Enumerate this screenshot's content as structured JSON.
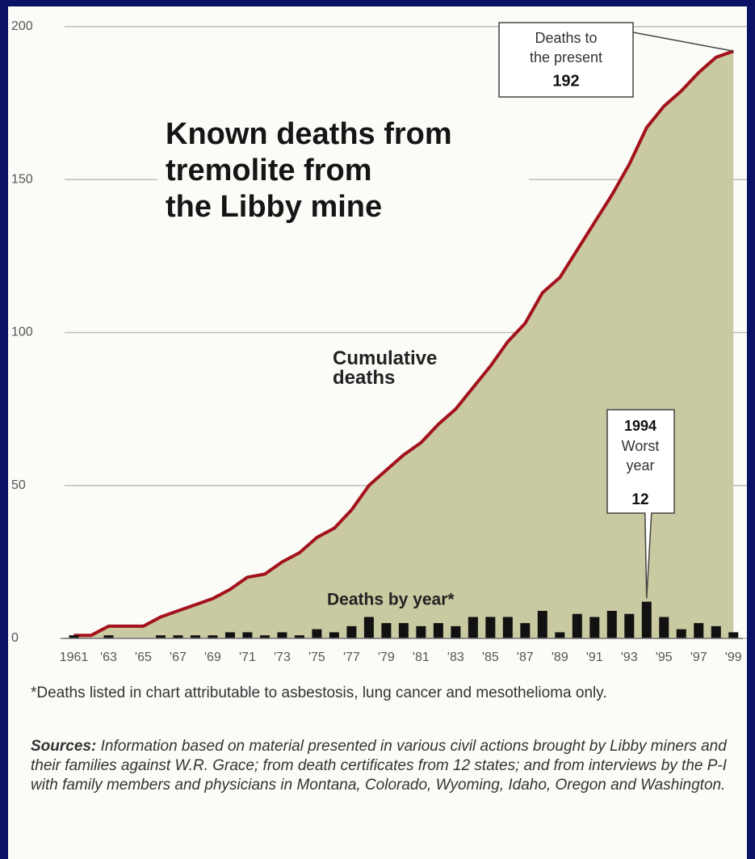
{
  "chart_data": {
    "type": "bar-line",
    "title": [
      "Known deaths from",
      "tremolite from",
      "the Libby mine"
    ],
    "x": [
      1961,
      1962,
      1963,
      1964,
      1965,
      1966,
      1967,
      1968,
      1969,
      1970,
      1971,
      1972,
      1973,
      1974,
      1975,
      1976,
      1977,
      1978,
      1979,
      1980,
      1981,
      1982,
      1983,
      1984,
      1985,
      1986,
      1987,
      1988,
      1989,
      1990,
      1991,
      1992,
      1993,
      1994,
      1995,
      1996,
      1997,
      1998,
      1999
    ],
    "series": [
      {
        "name": "Deaths by year*",
        "color": "#111111",
        "values": [
          1,
          0,
          1,
          0,
          0,
          1,
          1,
          1,
          1,
          2,
          2,
          1,
          2,
          1,
          3,
          2,
          4,
          7,
          5,
          5,
          4,
          5,
          4,
          7,
          7,
          7,
          5,
          9,
          2,
          8,
          7,
          9,
          8,
          12,
          7,
          3,
          5,
          4,
          2
        ]
      },
      {
        "name": "Cumulative deaths",
        "color": "#a3121c",
        "fill": "#c9c9a2",
        "values": [
          1,
          1,
          4,
          4,
          4,
          7,
          9,
          11,
          13,
          16,
          20,
          21,
          25,
          28,
          33,
          36,
          42,
          50,
          55,
          60,
          64,
          70,
          75,
          82,
          89,
          97,
          103,
          113,
          118,
          127,
          136,
          145,
          155,
          167,
          174,
          179,
          185,
          190,
          192
        ]
      }
    ],
    "xlim": [
      1960,
      1999.5
    ],
    "xticks": [
      {
        "value": 1961,
        "label": "1961"
      },
      {
        "value": 1963,
        "label": "'63"
      },
      {
        "value": 1965,
        "label": "'65"
      },
      {
        "value": 1967,
        "label": "'67"
      },
      {
        "value": 1969,
        "label": "'69"
      },
      {
        "value": 1971,
        "label": "'71"
      },
      {
        "value": 1973,
        "label": "'73"
      },
      {
        "value": 1975,
        "label": "'75"
      },
      {
        "value": 1977,
        "label": "'77"
      },
      {
        "value": 1979,
        "label": "'79"
      },
      {
        "value": 1981,
        "label": "'81"
      },
      {
        "value": 1983,
        "label": "'83"
      },
      {
        "value": 1985,
        "label": "'85"
      },
      {
        "value": 1987,
        "label": "'87"
      },
      {
        "value": 1989,
        "label": "'89"
      },
      {
        "value": 1991,
        "label": "'91"
      },
      {
        "value": 1993,
        "label": "'93"
      },
      {
        "value": 1995,
        "label": "'95"
      },
      {
        "value": 1997,
        "label": "'97"
      },
      {
        "value": 1999,
        "label": "'99"
      }
    ],
    "ylim": [
      0,
      200
    ],
    "yticks": [
      0,
      50,
      100,
      150,
      200
    ],
    "grid": true,
    "annotations": [
      {
        "lines": [
          "Deaths to",
          "the present"
        ]
      },
      {
        "lines": [
          "Worst",
          "year"
        ]
      }
    ],
    "footnote": "*Deaths listed in chart attributable to asbestosis, lung cancer and mesothelioma only.",
    "source_label": "Sources:",
    "source": "Information based on material presented in various civil actions brought by Libby miners and their families against W.R. Grace; from death certificates from 12 states; and from interviews by the P-I with family members and physicians in Montana, Colorado, Wyoming, Idaho, Oregon and Washington."
  }
}
